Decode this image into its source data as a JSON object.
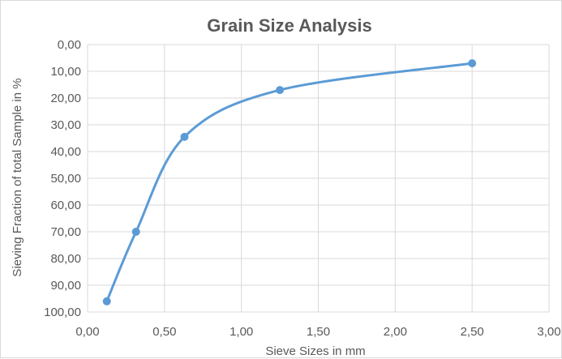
{
  "chart_data": {
    "type": "scatter",
    "title": "Grain Size Analysis",
    "xlabel": "Sieve Sizes in mm",
    "ylabel": "Sieving Fraction of total Sample in %",
    "xlim": [
      0,
      3
    ],
    "ylim": [
      0,
      100
    ],
    "y_reversed": true,
    "smooth_line": true,
    "grid": true,
    "legend": "none",
    "x_ticks": [
      0,
      0.5,
      1,
      1.5,
      2,
      2.5,
      3
    ],
    "x_tick_labels": [
      "0,00",
      "0,50",
      "1,00",
      "1,50",
      "2,00",
      "2,50",
      "3,00"
    ],
    "y_ticks": [
      0,
      10,
      20,
      30,
      40,
      50,
      60,
      70,
      80,
      90,
      100
    ],
    "y_tick_labels": [
      "0,00",
      "10,00",
      "20,00",
      "30,00",
      "40,00",
      "50,00",
      "60,00",
      "70,00",
      "80,00",
      "90,00",
      "100,00"
    ],
    "series": [
      {
        "x": [
          0.125,
          0.315,
          0.63,
          1.25,
          2.5
        ],
        "y": [
          96,
          70,
          34.5,
          17,
          7
        ],
        "color": "#5b9bd5"
      }
    ]
  }
}
